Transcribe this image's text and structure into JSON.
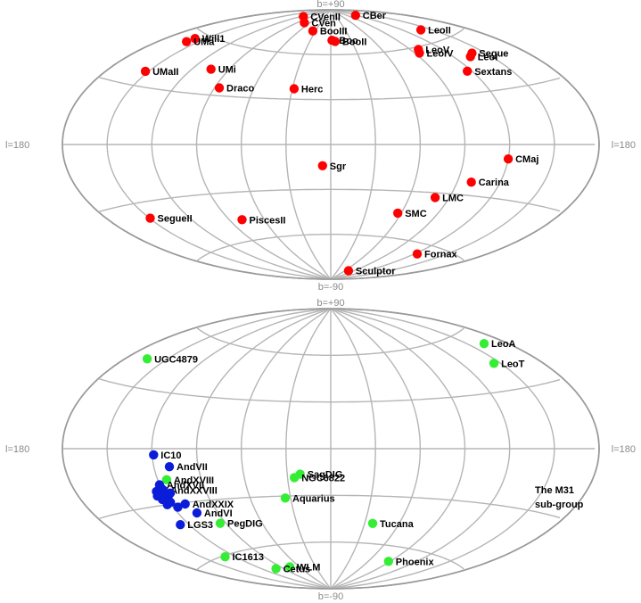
{
  "chart_data": [
    {
      "type": "scatter",
      "projection": "aitoff",
      "panel": "top",
      "edge_labels": {
        "north": "b=+90",
        "south": "b=-90",
        "west": "l=180",
        "east": "l=180"
      },
      "grid": true,
      "marker_color": "#ff0000",
      "points": [
        {
          "label": "CBer",
          "l": 241.9,
          "b": 83.6
        },
        {
          "label": "CVenII",
          "l": 113.6,
          "b": 82.7
        },
        {
          "label": "CVen",
          "l": 74.3,
          "b": 79.8
        },
        {
          "label": "BooIII",
          "l": 35.4,
          "b": 75.4
        },
        {
          "label": "BooII",
          "l": 353.7,
          "b": 68.9
        },
        {
          "label": "Boo",
          "l": 358.1,
          "b": 69.6
        },
        {
          "label": "LeoII",
          "l": 220.2,
          "b": 67.2
        },
        {
          "label": "LeoV",
          "l": 261.9,
          "b": 58.5
        },
        {
          "label": "LeoIV",
          "l": 265.4,
          "b": 56.5
        },
        {
          "label": "Segue",
          "l": 220.5,
          "b": 50.4
        },
        {
          "label": "LeoI",
          "l": 226.0,
          "b": 49.1
        },
        {
          "label": "Sextans",
          "l": 243.5,
          "b": 42.3
        },
        {
          "label": "Will1",
          "l": 158.6,
          "b": 56.8
        },
        {
          "label": "UMa",
          "l": 159.4,
          "b": 54.4
        },
        {
          "label": "UMi",
          "l": 104.9,
          "b": 44.8
        },
        {
          "label": "UMaII",
          "l": 152.5,
          "b": 37.4
        },
        {
          "label": "Herc",
          "l": 28.7,
          "b": 36.9
        },
        {
          "label": "Draco",
          "l": 86.4,
          "b": 34.7
        },
        {
          "label": "CMaj",
          "l": 240.0,
          "b": -8.0
        },
        {
          "label": "Sgr",
          "l": 5.6,
          "b": -14.2
        },
        {
          "label": "Carina",
          "l": 260.1,
          "b": -22.2
        },
        {
          "label": "LMC",
          "l": 280.5,
          "b": -32.9
        },
        {
          "label": "SMC",
          "l": 302.8,
          "b": -44.3
        },
        {
          "label": "PiscesII",
          "l": 79.2,
          "b": -47.1
        },
        {
          "label": "SegueII",
          "l": 149.4,
          "b": -38.1
        },
        {
          "label": "Fornax",
          "l": 237.1,
          "b": -65.7
        },
        {
          "label": "Sculptor",
          "l": 287.5,
          "b": -83.2
        }
      ]
    },
    {
      "type": "scatter",
      "projection": "aitoff",
      "panel": "bottom",
      "edge_labels": {
        "north": "b=+90",
        "south": "b=-90",
        "west": "l=180",
        "east": "l=180"
      },
      "grid": true,
      "colors": {
        "field": "#33ee33",
        "m31_group": "#0b1dd9"
      },
      "points": [
        {
          "label": "LeoA",
          "l": 196.9,
          "b": 52.4,
          "group": "field"
        },
        {
          "label": "LeoT",
          "l": 214.9,
          "b": 43.7,
          "group": "field"
        },
        {
          "label": "UGC4879",
          "l": 164.7,
          "b": 42.9,
          "group": "field"
        },
        {
          "label": "SagDIG",
          "l": 21.1,
          "b": -16.3,
          "group": "field"
        },
        {
          "label": "NGC6822",
          "l": 25.3,
          "b": -18.4,
          "group": "field"
        },
        {
          "label": "Aquarius",
          "l": 34.0,
          "b": -31.3,
          "group": "field"
        },
        {
          "label": "Tucana",
          "l": 322.9,
          "b": -47.4,
          "group": "field"
        },
        {
          "label": "PegDIG",
          "l": 94.8,
          "b": -43.6,
          "group": "field"
        },
        {
          "label": "Phoenix",
          "l": 272.2,
          "b": -68.9,
          "group": "field"
        },
        {
          "label": "WLM",
          "l": 75.9,
          "b": -73.6,
          "group": "field"
        },
        {
          "label": "Cetus",
          "l": 101.5,
          "b": -72.9,
          "group": "field"
        },
        {
          "label": "IC1613",
          "l": 129.8,
          "b": -60.6,
          "group": "field"
        },
        {
          "label": "AndXVIII",
          "l": 113.9,
          "b": -16.9,
          "group": "field"
        },
        {
          "label": "IC10",
          "l": 119.0,
          "b": -3.3,
          "group": "m31_group"
        },
        {
          "label": "AndVII",
          "l": 109.5,
          "b": -9.9,
          "group": "m31_group"
        },
        {
          "label": "AndXVII",
          "l": 120.2,
          "b": -19.3,
          "group": "m31_group"
        },
        {
          "label": "AndXXVIII",
          "l": 119.4,
          "b": -22.3,
          "group": "m31_group"
        },
        {
          "label": "AndXXIX",
          "l": 109.8,
          "b": -30.8,
          "group": "m31_group"
        },
        {
          "label": "AndVI",
          "l": 106.0,
          "b": -36.3,
          "group": "m31_group"
        },
        {
          "label": "LGS3",
          "l": 126.8,
          "b": -40.9,
          "group": "m31_group"
        },
        {
          "label": "",
          "l": 121.2,
          "b": -21.6,
          "group": "m31_group"
        },
        {
          "label": "",
          "l": 120.2,
          "b": -21.1,
          "group": "m31_group"
        },
        {
          "label": "",
          "l": 121.2,
          "b": -22.4,
          "group": "m31_group"
        },
        {
          "label": "",
          "l": 122.2,
          "b": -25.0,
          "group": "m31_group"
        },
        {
          "label": "",
          "l": 123.8,
          "b": -27.0,
          "group": "m31_group"
        },
        {
          "label": "",
          "l": 118.0,
          "b": -25.5,
          "group": "m31_group"
        },
        {
          "label": "",
          "l": 124.6,
          "b": -22.6,
          "group": "m31_group"
        },
        {
          "label": "",
          "l": 115.6,
          "b": -24.2,
          "group": "m31_group"
        },
        {
          "label": "",
          "l": 123.0,
          "b": -30.0,
          "group": "m31_group"
        },
        {
          "label": "",
          "l": 119.5,
          "b": -29.0,
          "group": "m31_group"
        },
        {
          "label": "",
          "l": 116.8,
          "b": -32.0,
          "group": "m31_group"
        },
        {
          "label": "",
          "l": 125.8,
          "b": -25.0,
          "group": "m31_group"
        }
      ],
      "annotation": "The M31 sub-group"
    }
  ]
}
